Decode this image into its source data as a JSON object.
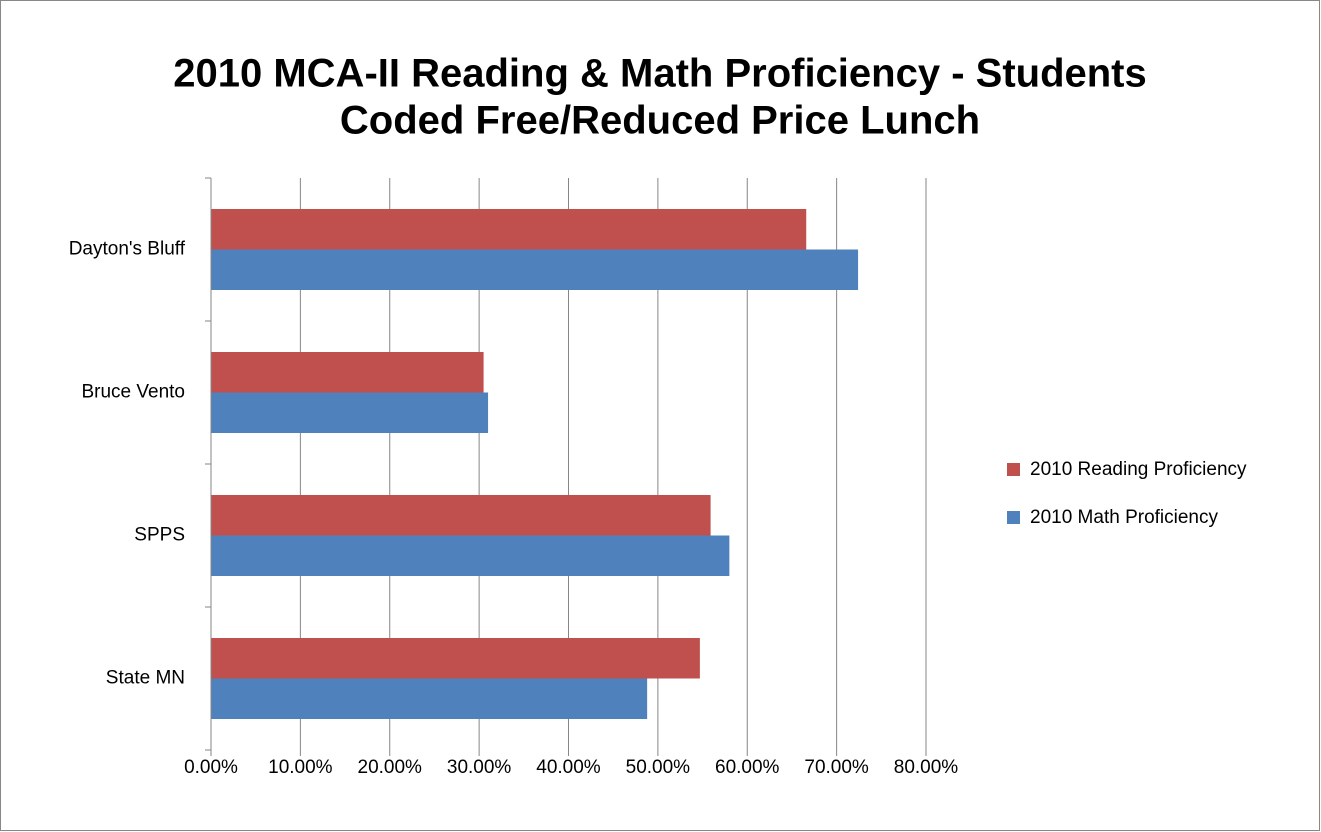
{
  "chart_data": {
    "type": "hbar",
    "title": [
      "2010 MCA-II Reading & Math Proficiency - Students",
      "Coded Free/Reduced Price Lunch"
    ],
    "categories": [
      "Dayton's Bluff",
      "Bruce Vento",
      "SPPS",
      "State MN"
    ],
    "series": [
      {
        "name": "2010 Reading Proficiency",
        "color": "#c0504d",
        "values": [
          66.6,
          30.5,
          55.9,
          54.7
        ]
      },
      {
        "name": "2010 Math Proficiency",
        "color": "#4f81bd",
        "values": [
          72.4,
          31.0,
          58.0,
          48.8
        ]
      }
    ],
    "xlim": [
      0,
      80
    ],
    "xticks": [
      {
        "value": 0,
        "label": "0.00%"
      },
      {
        "value": 10,
        "label": "10.00%"
      },
      {
        "value": 20,
        "label": "20.00%"
      },
      {
        "value": 30,
        "label": "30.00%"
      },
      {
        "value": 40,
        "label": "40.00%"
      },
      {
        "value": 50,
        "label": "50.00%"
      },
      {
        "value": 60,
        "label": "60.00%"
      },
      {
        "value": 70,
        "label": "70.00%"
      },
      {
        "value": 80,
        "label": "80.00%"
      }
    ],
    "grid": true,
    "legend": "right"
  }
}
